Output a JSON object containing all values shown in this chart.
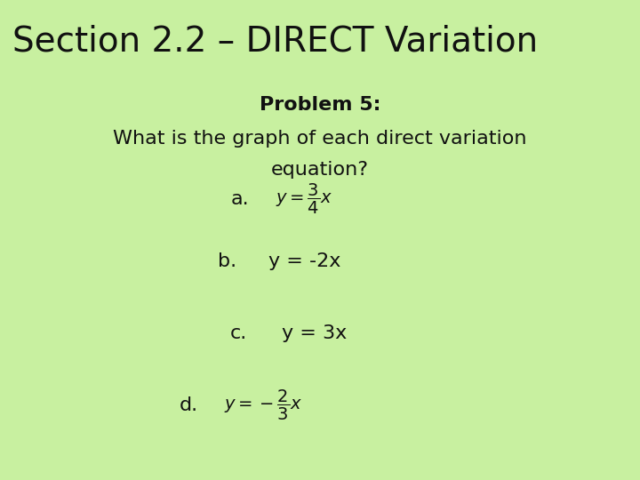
{
  "background_color": "#c8f0a0",
  "title": "Section 2.2 – DIRECT Variation",
  "title_fontsize": 28,
  "title_color": "#111111",
  "problem_text": "Problem 5:",
  "problem_fontsize": 16,
  "subtitle_line1": "What is the graph of each direct variation",
  "subtitle_line2": "equation?",
  "subtitle_fontsize": 16,
  "item_a_label": "a.",
  "item_a_math": "$y = \\dfrac{3}{4}x$",
  "item_b_label": "b.",
  "item_b_text": "y = -2x",
  "item_c_label": "c.",
  "item_c_text": "y = 3x",
  "item_d_label": "d.",
  "item_d_math": "$y = -\\dfrac{2}{3}x$",
  "label_fontsize": 16,
  "math_fontsize": 14,
  "text_fontsize": 16
}
